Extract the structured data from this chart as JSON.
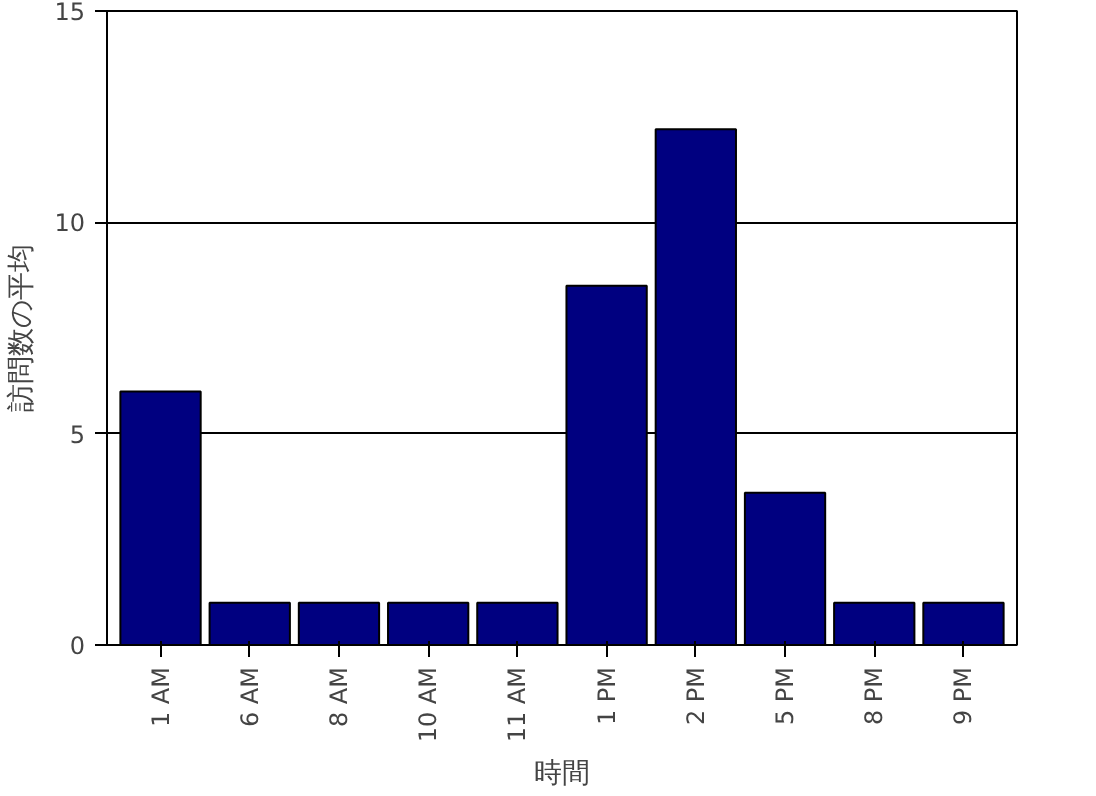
{
  "chart_data": {
    "type": "bar",
    "xlabel": "時間",
    "ylabel": "訪問数の平均",
    "categories": [
      "1 AM",
      "6 AM",
      "8 AM",
      "10 AM",
      "11 AM",
      "1 PM",
      "2 PM",
      "5 PM",
      "8 PM",
      "9 PM"
    ],
    "values": [
      6,
      1,
      1,
      1,
      1,
      8.5,
      12.2,
      3.6,
      1,
      1
    ],
    "color": "#000080",
    "ylim": [
      0,
      15
    ],
    "yticks": [
      0,
      5,
      10,
      15
    ],
    "grid": "y"
  }
}
